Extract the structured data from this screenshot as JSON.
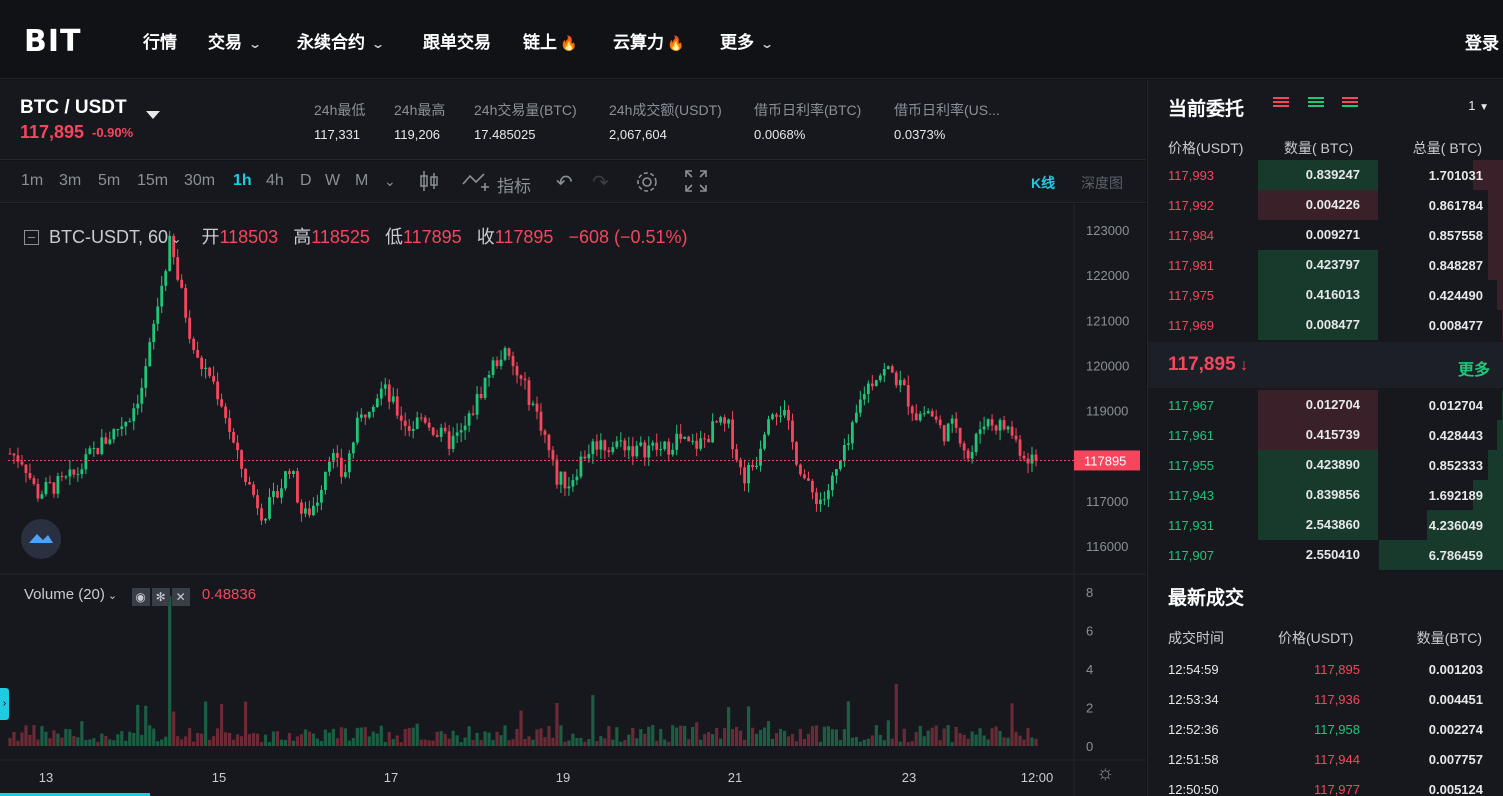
{
  "nav": {
    "logo": "BIT",
    "items": [
      {
        "label": "行情",
        "dropdown": false,
        "hot": false
      },
      {
        "label": "交易",
        "dropdown": true,
        "hot": false
      },
      {
        "label": "永续合约",
        "dropdown": true,
        "hot": false
      },
      {
        "label": "跟单交易",
        "dropdown": false,
        "hot": false
      },
      {
        "label": "链上",
        "dropdown": false,
        "hot": true
      },
      {
        "label": "云算力",
        "dropdown": false,
        "hot": true
      },
      {
        "label": "更多",
        "dropdown": true,
        "hot": false
      }
    ],
    "login": "登录"
  },
  "ticker": {
    "pair": "BTC / USDT",
    "last_price": "117,895",
    "change_pct": "-0.90%",
    "stats": [
      {
        "label": "24h最低",
        "value": "117,331"
      },
      {
        "label": "24h最高",
        "value": "119,206"
      },
      {
        "label": "24h交易量(BTC)",
        "value": "17.485025"
      },
      {
        "label": "24h成交额(USDT)",
        "value": "2,067,604"
      },
      {
        "label": "借币日利率(BTC)",
        "value": "0.0068%"
      },
      {
        "label": "借币日利率(US...",
        "value": "0.0373%"
      }
    ]
  },
  "toolbar": {
    "timeframes": [
      "1m",
      "3m",
      "5m",
      "15m",
      "30m",
      "1h",
      "4h",
      "D",
      "W",
      "M"
    ],
    "active_timeframe": "1h",
    "indicators_label": "指标",
    "kline_tab": "K线",
    "depth_tab": "深度图"
  },
  "chart": {
    "legend": {
      "symbol": "BTC-USDT, 60",
      "open_label": "开",
      "open": "118503",
      "high_label": "高",
      "high": "118525",
      "low_label": "低",
      "low": "117895",
      "close_label": "收",
      "close": "117895",
      "change": "−608 (−0.51%)"
    },
    "volume_legend": {
      "label": "Volume (20)",
      "value": "0.48836"
    },
    "last_price_tag": "117895"
  },
  "chart_data": {
    "type": "candlestick",
    "price_axis": {
      "ticks": [
        "123000",
        "122000",
        "121000",
        "120000",
        "119000",
        "118000",
        "117000",
        "116000"
      ],
      "ylim": [
        115700,
        123300
      ]
    },
    "volume_axis": {
      "ticks": [
        "8",
        "6",
        "4",
        "2",
        "0"
      ],
      "ylim": [
        0,
        8.5
      ]
    },
    "x_ticks": [
      "13",
      "15",
      "17",
      "19",
      "21",
      "23",
      "12:00"
    ],
    "close_path": [
      118050,
      117900,
      117150,
      117300,
      117400,
      117600,
      118000,
      118300,
      118600,
      118900,
      119600,
      121200,
      122700,
      121400,
      120100,
      119800,
      119100,
      118000,
      117300,
      116700,
      117100,
      117800,
      116600,
      117000,
      118100,
      117500,
      118600,
      119200,
      119500,
      119000,
      118600,
      118900,
      118500,
      118300,
      118500,
      119200,
      119900,
      120300,
      119800,
      119300,
      118600,
      117500,
      117400,
      118000,
      118300,
      118200,
      118300,
      118100,
      118200,
      118100,
      118400,
      118200,
      118300,
      118700,
      118600,
      117500,
      117900,
      119100,
      119000,
      118000,
      117200,
      117000,
      117600,
      118300,
      119400,
      119800,
      119900,
      119500,
      118900,
      119000,
      118500,
      118700,
      117900,
      118800,
      118700,
      118600,
      118050,
      117895
    ],
    "last_price": 117895
  },
  "orderbook": {
    "title": "当前委托",
    "precision": "1",
    "headers": [
      "价格(USDT)",
      "数量( BTC)",
      "总量( BTC)"
    ],
    "asks": [
      {
        "price": "117,993",
        "amount": "0.839247",
        "total": "1.701031",
        "amount_bar": "green",
        "total_frac": 0.25
      },
      {
        "price": "117,992",
        "amount": "0.004226",
        "total": "0.861784",
        "amount_bar": "red",
        "total_frac": 0.13
      },
      {
        "price": "117,984",
        "amount": "0.009271",
        "total": "0.857558",
        "amount_bar": "none",
        "total_frac": 0.13
      },
      {
        "price": "117,981",
        "amount": "0.423797",
        "total": "0.848287",
        "amount_bar": "green",
        "total_frac": 0.13
      },
      {
        "price": "117,975",
        "amount": "0.416013",
        "total": "0.424490",
        "amount_bar": "green",
        "total_frac": 0.06
      },
      {
        "price": "117,969",
        "amount": "0.008477",
        "total": "0.008477",
        "amount_bar": "green",
        "total_frac": 0.01
      }
    ],
    "mid_price": "117,895",
    "more": "更多",
    "bids": [
      {
        "price": "117,967",
        "amount": "0.012704",
        "total": "0.012704",
        "amount_bar": "red",
        "total_frac": 0.01
      },
      {
        "price": "117,961",
        "amount": "0.415739",
        "total": "0.428443",
        "amount_bar": "red",
        "total_frac": 0.06
      },
      {
        "price": "117,955",
        "amount": "0.423890",
        "total": "0.852333",
        "amount_bar": "green",
        "total_frac": 0.13
      },
      {
        "price": "117,943",
        "amount": "0.839856",
        "total": "1.692189",
        "amount_bar": "green",
        "total_frac": 0.25
      },
      {
        "price": "117,931",
        "amount": "2.543860",
        "total": "4.236049",
        "amount_bar": "green",
        "total_frac": 0.62
      },
      {
        "price": "117,907",
        "amount": "2.550410",
        "total": "6.786459",
        "amount_bar": "none",
        "total_frac": 1.0
      }
    ]
  },
  "trades": {
    "title": "最新成交",
    "headers": [
      "成交时间",
      "价格(USDT)",
      "数量(BTC)"
    ],
    "rows": [
      {
        "time": "12:54:59",
        "price": "117,895",
        "qty": "0.001203",
        "side": "sell"
      },
      {
        "time": "12:53:34",
        "price": "117,936",
        "qty": "0.004451",
        "side": "sell"
      },
      {
        "time": "12:52:36",
        "price": "117,958",
        "qty": "0.002274",
        "side": "buy"
      },
      {
        "time": "12:51:58",
        "price": "117,944",
        "qty": "0.007757",
        "side": "sell"
      },
      {
        "time": "12:50:50",
        "price": "117,977",
        "qty": "0.005124",
        "side": "sell"
      }
    ]
  },
  "colors": {
    "up": "#21c57a",
    "down": "#f6465d",
    "accent": "#1ecbe1",
    "background": "#16181d"
  }
}
